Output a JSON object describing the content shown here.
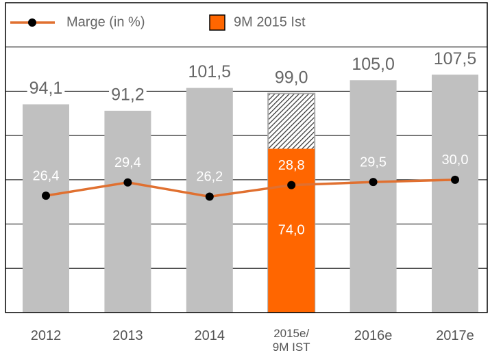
{
  "chart_data": {
    "type": "bar",
    "categories": [
      "2012",
      "2013",
      "2014",
      "2015e/\n9M IST",
      "2016e",
      "2017e"
    ],
    "values": [
      94.1,
      91.2,
      101.5,
      99.0,
      105.0,
      107.5
    ],
    "value_labels": [
      "94,1",
      "91,2",
      "101,5",
      "99,0",
      "105,0",
      "107,5"
    ],
    "color": "#c0c0c0",
    "hatched": [
      false,
      false,
      false,
      true,
      false,
      false
    ],
    "series": [
      {
        "name": "9M 2015 Ist",
        "type": "bar",
        "color": "#ff6600",
        "values": [
          null,
          null,
          null,
          74.0,
          null,
          null
        ],
        "value_labels": [
          null,
          null,
          null,
          "74,0",
          null,
          null
        ]
      },
      {
        "name": "Marge (in %)",
        "type": "line",
        "axis": "y2",
        "color": "#e07030",
        "values": [
          26.4,
          29.4,
          26.2,
          28.8,
          29.5,
          30.0
        ],
        "value_labels": [
          "26,4",
          "29,4",
          "26,2",
          "28,8",
          "29,5",
          "30,0"
        ]
      }
    ],
    "ylim": [
      0,
      140
    ],
    "yticks": [
      0,
      20,
      40,
      60,
      80,
      100,
      120,
      140
    ],
    "y2lim": [
      0,
      70
    ],
    "grid": true,
    "legend": "top"
  }
}
